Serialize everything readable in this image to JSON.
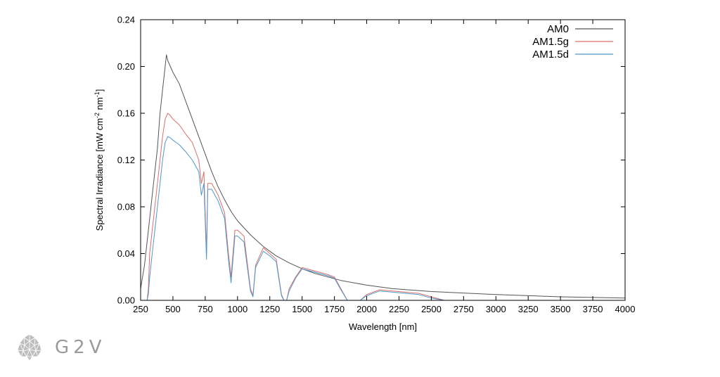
{
  "chart_data": {
    "type": "line",
    "xlabel": "Wavelength [nm]",
    "ylabel": "Spectral Irradiance [mW cm",
    "ylabel_unit_tail": [
      " nm",
      "]"
    ],
    "ylabel_sup": [
      "-2",
      "-1"
    ],
    "xlim": [
      250,
      4000
    ],
    "ylim": [
      0,
      0.24
    ],
    "xticks": [
      250,
      500,
      750,
      1000,
      1250,
      1500,
      1750,
      2000,
      2250,
      2500,
      2750,
      3000,
      3250,
      3500,
      3750,
      4000
    ],
    "xtick_labels": [
      "250",
      "500",
      "750",
      "1000",
      "1250",
      "1500",
      "1750",
      "2000",
      "2250",
      "2500",
      "2750",
      "3000",
      "3250",
      "3500",
      "3750",
      "4000"
    ],
    "yticks": [
      0,
      0.04,
      0.08,
      0.12,
      0.16,
      0.2,
      0.24
    ],
    "ytick_labels": [
      "0.00",
      "0.04",
      "0.08",
      "0.12",
      "0.16",
      "0.20",
      "0.24"
    ],
    "legend_position": "top-right",
    "grid": false,
    "series": [
      {
        "name": "AM0",
        "color": "#555555",
        "x": [
          250,
          280,
          300,
          320,
          340,
          360,
          380,
          400,
          420,
          440,
          450,
          460,
          480,
          500,
          550,
          600,
          650,
          700,
          750,
          800,
          850,
          900,
          950,
          1000,
          1100,
          1200,
          1300,
          1400,
          1500,
          1600,
          1700,
          1800,
          2000,
          2200,
          2500,
          3000,
          3500,
          4000
        ],
        "y": [
          0.01,
          0.03,
          0.05,
          0.07,
          0.09,
          0.11,
          0.13,
          0.16,
          0.18,
          0.2,
          0.21,
          0.205,
          0.2,
          0.195,
          0.185,
          0.17,
          0.155,
          0.14,
          0.125,
          0.11,
          0.097,
          0.086,
          0.076,
          0.068,
          0.056,
          0.046,
          0.038,
          0.032,
          0.027,
          0.023,
          0.02,
          0.017,
          0.013,
          0.01,
          0.0075,
          0.005,
          0.003,
          0.002
        ]
      },
      {
        "name": "AM1.5g",
        "color": "#d9706a",
        "x": [
          250,
          280,
          300,
          310,
          320,
          340,
          360,
          380,
          400,
          420,
          440,
          460,
          480,
          500,
          550,
          600,
          650,
          700,
          720,
          740,
          760,
          770,
          800,
          850,
          900,
          930,
          950,
          980,
          1000,
          1050,
          1100,
          1120,
          1140,
          1200,
          1250,
          1300,
          1340,
          1360,
          1380,
          1400,
          1450,
          1500,
          1600,
          1700,
          1750,
          1800,
          1850,
          1900,
          1950,
          2000,
          2100,
          2200,
          2300,
          2400,
          2500,
          2600,
          2700,
          3000,
          3500,
          4000
        ],
        "y": [
          0,
          0,
          0,
          0.01,
          0.04,
          0.06,
          0.08,
          0.1,
          0.12,
          0.14,
          0.155,
          0.16,
          0.158,
          0.155,
          0.15,
          0.142,
          0.135,
          0.12,
          0.1,
          0.11,
          0.04,
          0.1,
          0.1,
          0.09,
          0.075,
          0.04,
          0.02,
          0.06,
          0.06,
          0.055,
          0.01,
          0.004,
          0.03,
          0.045,
          0.04,
          0.035,
          0.005,
          0,
          0,
          0.01,
          0.02,
          0.028,
          0.025,
          0.022,
          0.02,
          0.01,
          0,
          0,
          0,
          0.005,
          0.009,
          0.008,
          0.007,
          0.006,
          0.003,
          0,
          0,
          0,
          0,
          0
        ]
      },
      {
        "name": "AM1.5d",
        "color": "#4f97c9",
        "x": [
          250,
          280,
          300,
          310,
          320,
          340,
          360,
          380,
          400,
          420,
          440,
          460,
          480,
          500,
          550,
          600,
          650,
          700,
          720,
          740,
          760,
          770,
          800,
          850,
          900,
          930,
          950,
          980,
          1000,
          1050,
          1100,
          1120,
          1140,
          1200,
          1250,
          1300,
          1340,
          1360,
          1380,
          1400,
          1450,
          1500,
          1600,
          1700,
          1750,
          1800,
          1850,
          1900,
          1950,
          2000,
          2100,
          2200,
          2300,
          2400,
          2500,
          2600,
          2700,
          3000,
          3500,
          4000
        ],
        "y": [
          0,
          0,
          0,
          0.005,
          0.02,
          0.04,
          0.06,
          0.08,
          0.1,
          0.12,
          0.135,
          0.14,
          0.139,
          0.137,
          0.133,
          0.127,
          0.12,
          0.11,
          0.09,
          0.1,
          0.035,
          0.095,
          0.095,
          0.085,
          0.07,
          0.035,
          0.015,
          0.055,
          0.055,
          0.05,
          0.008,
          0.003,
          0.028,
          0.042,
          0.038,
          0.033,
          0.004,
          0,
          0,
          0.008,
          0.019,
          0.027,
          0.024,
          0.021,
          0.019,
          0.009,
          0,
          0,
          0,
          0.004,
          0.008,
          0.007,
          0.006,
          0.005,
          0.002,
          0,
          0,
          0,
          0,
          0
        ]
      }
    ]
  },
  "logo": {
    "text": "G2V",
    "icon": "geodesic-sphere-icon"
  }
}
